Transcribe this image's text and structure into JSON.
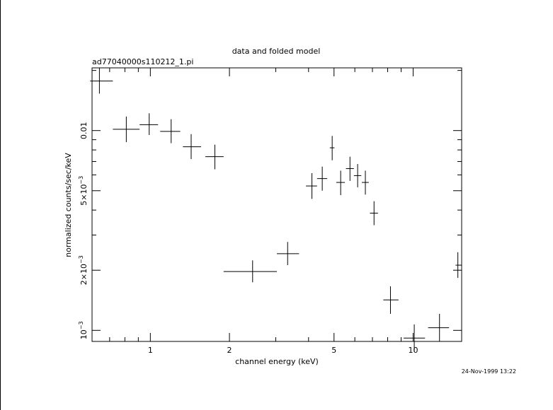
{
  "chart_data": {
    "type": "scatter",
    "title": "data and folded model",
    "subtitle": "ad77040000s110212_1.pi",
    "xlabel": "channel energy (keV)",
    "ylabel": "normalized counts/sec/keV",
    "timestamp": "24-Nov-1999 13:22",
    "xscale": "log",
    "yscale": "log",
    "xlim": [
      0.6,
      15.3
    ],
    "ylim": [
      0.00088,
      0.0206
    ],
    "x_tick_labels": [
      {
        "value": 1,
        "label": "1"
      },
      {
        "value": 2,
        "label": "2"
      },
      {
        "value": 5,
        "label": "5"
      },
      {
        "value": 10,
        "label": "10"
      }
    ],
    "y_tick_labels": [
      {
        "value": 0.001,
        "base": "10",
        "exp": "−3",
        "mult": ""
      },
      {
        "value": 0.002,
        "base": "10",
        "exp": "−3",
        "mult": "2×"
      },
      {
        "value": 0.005,
        "base": "10",
        "exp": "−3",
        "mult": "5×"
      },
      {
        "value": 0.01,
        "base": "0.01",
        "exp": "",
        "mult": ""
      }
    ],
    "grid": false,
    "color": "#000000",
    "series": [
      {
        "points": [
          {
            "x": 0.64,
            "xerr": [
              0.59,
              0.72
            ],
            "y": 0.0177,
            "yerr": [
              0.0153,
              0.0206
            ]
          },
          {
            "x": 0.81,
            "xerr": [
              0.72,
              0.91
            ],
            "y": 0.01015,
            "yerr": [
              0.00875,
              0.01175
            ]
          },
          {
            "x": 0.99,
            "xerr": [
              0.91,
              1.07
            ],
            "y": 0.0107,
            "yerr": [
              0.0095,
              0.0122
            ]
          },
          {
            "x": 1.2,
            "xerr": [
              1.09,
              1.3
            ],
            "y": 0.0099,
            "yerr": [
              0.00865,
              0.0114
            ]
          },
          {
            "x": 1.43,
            "xerr": [
              1.33,
              1.56
            ],
            "y": 0.0083,
            "yerr": [
              0.0072,
              0.0096
            ]
          },
          {
            "x": 1.76,
            "xerr": [
              1.62,
              1.9
            ],
            "y": 0.0074,
            "yerr": [
              0.0064,
              0.0085
            ]
          },
          {
            "x": 2.45,
            "xerr": [
              1.9,
              3.03
            ],
            "y": 0.00197,
            "yerr": [
              0.00174,
              0.00224
            ]
          },
          {
            "x": 3.33,
            "xerr": [
              3.03,
              3.68
            ],
            "y": 0.00242,
            "yerr": [
              0.00212,
              0.00277
            ]
          },
          {
            "x": 4.12,
            "xerr": [
              3.91,
              4.31
            ],
            "y": 0.00528,
            "yerr": [
              0.00455,
              0.00612
            ]
          },
          {
            "x": 4.51,
            "xerr": [
              4.31,
              4.71
            ],
            "y": 0.00575,
            "yerr": [
              0.005,
              0.0066
            ]
          },
          {
            "x": 4.92,
            "xerr": [
              4.82,
              5.02
            ],
            "y": 0.0082,
            "yerr": [
              0.0071,
              0.0094
            ]
          },
          {
            "x": 5.3,
            "xerr": [
              5.1,
              5.5
            ],
            "y": 0.0055,
            "yerr": [
              0.00475,
              0.0063
            ]
          },
          {
            "x": 5.75,
            "xerr": [
              5.55,
              5.95
            ],
            "y": 0.00645,
            "yerr": [
              0.0056,
              0.0074
            ]
          },
          {
            "x": 6.15,
            "xerr": [
              5.95,
              6.35
            ],
            "y": 0.00595,
            "yerr": [
              0.0052,
              0.0068
            ]
          },
          {
            "x": 6.58,
            "xerr": [
              6.38,
              6.78
            ],
            "y": 0.0055,
            "yerr": [
              0.00478,
              0.0063
            ]
          },
          {
            "x": 7.1,
            "xerr": [
              6.85,
              7.35
            ],
            "y": 0.00386,
            "yerr": [
              0.00336,
              0.00443
            ]
          },
          {
            "x": 8.2,
            "xerr": [
              7.7,
              8.8
            ],
            "y": 0.00142,
            "yerr": [
              0.00121,
              0.00166
            ]
          },
          {
            "x": 10.1,
            "xerr": [
              9.2,
              11.1
            ],
            "y": 0.000915,
            "yerr": [
              0.00078,
              0.00107
            ]
          },
          {
            "x": 12.6,
            "xerr": [
              11.4,
              13.7
            ],
            "y": 0.00103,
            "yerr": [
              0.00088,
              0.00121
            ]
          },
          {
            "x": 14.8,
            "xerr": [
              14.5,
              15.3
            ],
            "y": 0.00212,
            "yerr": [
              0.00183,
              0.00246
            ]
          }
        ]
      }
    ]
  }
}
